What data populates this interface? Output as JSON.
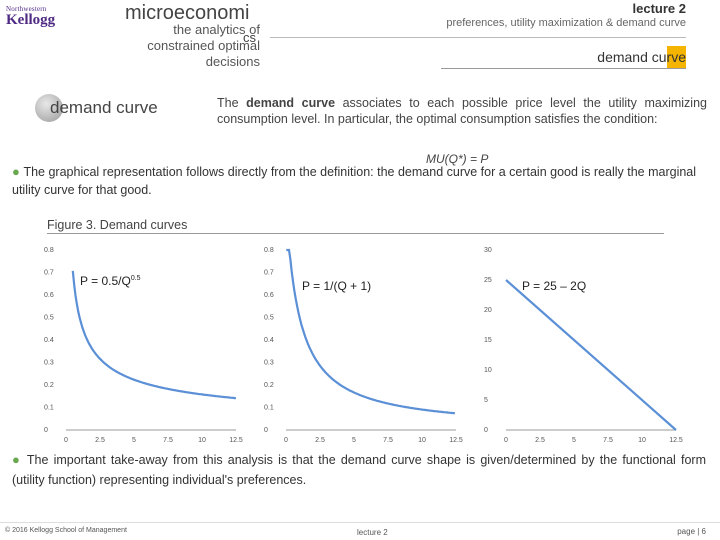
{
  "header": {
    "logo_top": "Northwestern",
    "logo_main": "Kellogg",
    "course_title": "microeconomi",
    "course_sub": "the analytics of constrained optimal decisions",
    "course_tag": "cs",
    "lecture_label": "lecture 2",
    "lecture_sub": "preferences, utility maximization & demand curve",
    "section_title": "demand curve",
    "accent_color": "#f4b400"
  },
  "content": {
    "badge_label": "demand curve",
    "para_pre": "The ",
    "para_bold": "demand curve",
    "para_post": " associates to each possible price level the utility maximizing consumption level. In particular, the optimal consumption satisfies the condition:",
    "condition": "MU(Q*) = P",
    "bullet1": "The graphical representation follows directly from the definition: the demand curve for a certain good is really the marginal utility curve for that good.",
    "figure_title": "Figure 3. Demand curves",
    "bullet2": "The important take-away from this analysis is that the demand curve shape is given/determined by the functional form (utility function) representing individual's preferences."
  },
  "chart_data": [
    {
      "type": "line",
      "annotation": "P = 0.5/Q",
      "annotation_sup": "0.5",
      "series": [
        {
          "x": [
            0.5,
            1,
            1.5,
            2,
            3,
            4,
            5,
            7.5,
            10,
            12.5
          ],
          "values": [
            0.71,
            0.5,
            0.41,
            0.35,
            0.29,
            0.25,
            0.22,
            0.18,
            0.16,
            0.14
          ]
        }
      ],
      "x_ticks": [
        "0",
        "2.5",
        "5",
        "7.5",
        "10",
        "12.5"
      ],
      "y_ticks": [
        "0",
        "0.1",
        "0.2",
        "0.3",
        "0.4",
        "0.5",
        "0.6",
        "0.7",
        "0.8"
      ],
      "xlim": [
        0,
        12.5
      ],
      "ylim": [
        0,
        0.8
      ],
      "line_color": "#5b8fd6"
    },
    {
      "type": "line",
      "annotation": "P = 1/(Q + 1)",
      "series": [
        {
          "x": [
            0.25,
            0.5,
            1,
            1.5,
            2,
            3,
            4,
            5,
            7.5,
            10,
            12.5
          ],
          "values": [
            0.8,
            0.67,
            0.5,
            0.4,
            0.33,
            0.25,
            0.2,
            0.17,
            0.12,
            0.09,
            0.07
          ]
        }
      ],
      "x_ticks": [
        "0",
        "2.5",
        "5",
        "7.5",
        "10",
        "12.5"
      ],
      "y_ticks": [
        "0",
        "0.1",
        "0.2",
        "0.3",
        "0.4",
        "0.5",
        "0.6",
        "0.7",
        "0.8"
      ],
      "xlim": [
        0,
        12.5
      ],
      "ylim": [
        0,
        0.8
      ],
      "line_color": "#5b8fd6"
    },
    {
      "type": "line",
      "annotation": "P = 25 – 2Q",
      "series": [
        {
          "x": [
            0,
            12.5
          ],
          "values": [
            25,
            0
          ]
        }
      ],
      "x_ticks": [
        "0",
        "2.5",
        "5",
        "7.5",
        "10",
        "12.5"
      ],
      "y_ticks": [
        "0",
        "5",
        "10",
        "15",
        "20",
        "25",
        "30"
      ],
      "xlim": [
        0,
        12.5
      ],
      "ylim": [
        0,
        30
      ],
      "line_color": "#5b8fd6"
    }
  ],
  "footer": {
    "left": "© 2016 Kellogg School of Management",
    "mid": "lecture 2",
    "right": "page | 6"
  }
}
